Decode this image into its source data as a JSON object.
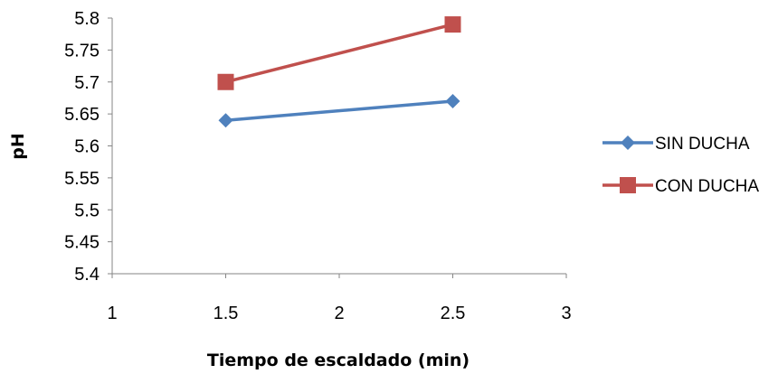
{
  "chart_data": {
    "type": "line",
    "xlabel": "Tiempo de escaldado (min)",
    "ylabel": "pH",
    "xlim": [
      1,
      3
    ],
    "ylim": [
      5.4,
      5.8
    ],
    "xticks": [
      "1",
      "1.5",
      "2",
      "2.5",
      "3"
    ],
    "yticks": [
      "5.4",
      "5.45",
      "5.5",
      "5.55",
      "5.6",
      "5.65",
      "5.7",
      "5.75",
      "5.8"
    ],
    "grid": false,
    "legend_position": "right",
    "series": [
      {
        "name": "SIN DUCHA",
        "color": "#4F81BD",
        "marker": "diamond",
        "x": [
          1.5,
          2.5
        ],
        "y": [
          5.64,
          5.67
        ]
      },
      {
        "name": "CON DUCHA",
        "color": "#C0504D",
        "marker": "square",
        "x": [
          1.5,
          2.5
        ],
        "y": [
          5.7,
          5.79
        ]
      }
    ]
  }
}
